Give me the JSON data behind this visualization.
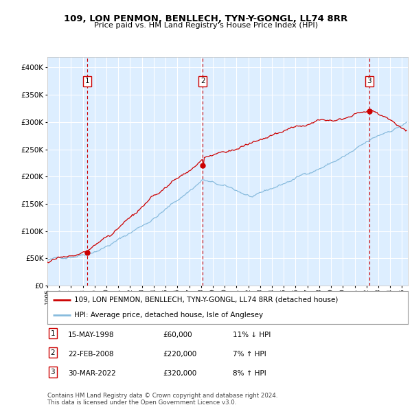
{
  "title": "109, LON PENMON, BENLLECH, TYN-Y-GONGL, LL74 8RR",
  "subtitle": "Price paid vs. HM Land Registry's House Price Index (HPI)",
  "ylim": [
    0,
    420000
  ],
  "yticks": [
    0,
    50000,
    100000,
    150000,
    200000,
    250000,
    300000,
    350000,
    400000
  ],
  "xlim_start": 1995.0,
  "xlim_end": 2025.5,
  "sale_dates": [
    1998.37,
    2008.14,
    2022.24
  ],
  "sale_prices": [
    60000,
    220000,
    320000
  ],
  "property_line_color": "#cc0000",
  "hpi_line_color": "#88bbdd",
  "background_color": "#ddeeff",
  "fig_bg_color": "#ffffff",
  "legend_entries": [
    "109, LON PENMON, BENLLECH, TYN-Y-GONGL, LL74 8RR (detached house)",
    "HPI: Average price, detached house, Isle of Anglesey"
  ],
  "table_rows": [
    {
      "num": "1",
      "date": "15-MAY-1998",
      "price": "£60,000",
      "hpi": "11% ↓ HPI"
    },
    {
      "num": "2",
      "date": "22-FEB-2008",
      "price": "£220,000",
      "hpi": "7% ↑ HPI"
    },
    {
      "num": "3",
      "date": "30-MAR-2022",
      "price": "£320,000",
      "hpi": "8% ↑ HPI"
    }
  ],
  "footnote1": "Contains HM Land Registry data © Crown copyright and database right 2024.",
  "footnote2": "This data is licensed under the Open Government Licence v3.0."
}
